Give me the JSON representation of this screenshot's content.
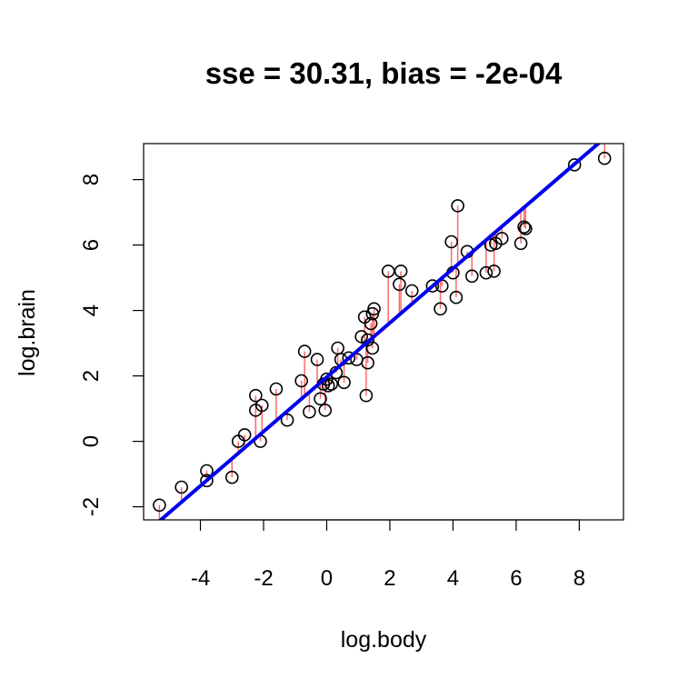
{
  "chart_data": {
    "type": "scatter",
    "title": "sse = 30.31, bias = -2e-04",
    "xlabel": "log.body",
    "ylabel": "log.brain",
    "xlim": [
      -5.8,
      9.4
    ],
    "ylim": [
      -2.4,
      9.1
    ],
    "xticks": [
      -4,
      -2,
      0,
      2,
      4,
      6,
      8
    ],
    "yticks": [
      -2,
      0,
      2,
      4,
      6,
      8
    ],
    "grid": false,
    "fit_line": {
      "intercept": 1.96,
      "slope": 0.83
    },
    "colors": {
      "points": "#000000",
      "fit_line": "#0000ee",
      "residuals": "#ff6a6a"
    },
    "series": [
      {
        "points": [
          {
            "x": -5.3,
            "y": -1.95
          },
          {
            "x": -4.6,
            "y": -1.4
          },
          {
            "x": -3.8,
            "y": -0.9
          },
          {
            "x": -3.8,
            "y": -1.2
          },
          {
            "x": -3.0,
            "y": -1.1
          },
          {
            "x": -2.8,
            "y": 0.0
          },
          {
            "x": -2.6,
            "y": 0.2
          },
          {
            "x": -2.25,
            "y": 1.4
          },
          {
            "x": -2.25,
            "y": 0.95
          },
          {
            "x": -2.1,
            "y": 0.0
          },
          {
            "x": -2.05,
            "y": 1.1
          },
          {
            "x": -1.6,
            "y": 1.6
          },
          {
            "x": -1.25,
            "y": 0.65
          },
          {
            "x": -0.8,
            "y": 1.85
          },
          {
            "x": -0.7,
            "y": 2.75
          },
          {
            "x": -0.55,
            "y": 0.9
          },
          {
            "x": -0.3,
            "y": 2.5
          },
          {
            "x": -0.2,
            "y": 1.3
          },
          {
            "x": -0.1,
            "y": 1.75
          },
          {
            "x": -0.05,
            "y": 0.95
          },
          {
            "x": 0.0,
            "y": 1.9
          },
          {
            "x": 0.05,
            "y": 1.7
          },
          {
            "x": 0.15,
            "y": 1.75
          },
          {
            "x": 0.3,
            "y": 2.1
          },
          {
            "x": 0.35,
            "y": 2.85
          },
          {
            "x": 0.45,
            "y": 2.5
          },
          {
            "x": 0.55,
            "y": 1.8
          },
          {
            "x": 0.7,
            "y": 2.55
          },
          {
            "x": 0.95,
            "y": 2.5
          },
          {
            "x": 1.1,
            "y": 3.2
          },
          {
            "x": 1.2,
            "y": 3.8
          },
          {
            "x": 1.25,
            "y": 1.4
          },
          {
            "x": 1.3,
            "y": 2.4
          },
          {
            "x": 1.3,
            "y": 3.1
          },
          {
            "x": 1.4,
            "y": 3.6
          },
          {
            "x": 1.45,
            "y": 2.85
          },
          {
            "x": 1.45,
            "y": 3.9
          },
          {
            "x": 1.5,
            "y": 4.05
          },
          {
            "x": 1.95,
            "y": 5.2
          },
          {
            "x": 2.3,
            "y": 4.8
          },
          {
            "x": 2.35,
            "y": 5.2
          },
          {
            "x": 2.7,
            "y": 4.6
          },
          {
            "x": 3.35,
            "y": 4.75
          },
          {
            "x": 3.6,
            "y": 4.05
          },
          {
            "x": 3.65,
            "y": 4.75
          },
          {
            "x": 3.95,
            "y": 6.1
          },
          {
            "x": 4.0,
            "y": 5.15
          },
          {
            "x": 4.1,
            "y": 4.4
          },
          {
            "x": 4.15,
            "y": 7.2
          },
          {
            "x": 4.45,
            "y": 5.8
          },
          {
            "x": 4.6,
            "y": 5.05
          },
          {
            "x": 5.05,
            "y": 5.15
          },
          {
            "x": 5.2,
            "y": 6.0
          },
          {
            "x": 5.3,
            "y": 5.2
          },
          {
            "x": 5.35,
            "y": 6.05
          },
          {
            "x": 5.55,
            "y": 6.2
          },
          {
            "x": 6.15,
            "y": 6.05
          },
          {
            "x": 6.25,
            "y": 6.55
          },
          {
            "x": 6.3,
            "y": 6.5
          },
          {
            "x": 7.85,
            "y": 8.45
          },
          {
            "x": 8.8,
            "y": 8.65
          }
        ]
      }
    ]
  }
}
